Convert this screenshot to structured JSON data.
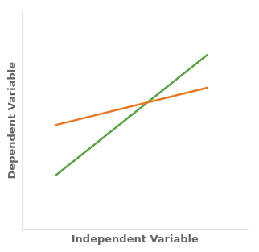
{
  "chart_data": {
    "type": "line",
    "xlabel": "Independent Variable",
    "ylabel": "Dependent Variable",
    "x": [
      0.15,
      0.82
    ],
    "series": [
      {
        "color": "#E87722",
        "values": [
          0.48,
          0.65
        ]
      },
      {
        "color": "#5BA343",
        "values": [
          0.25,
          0.8
        ]
      }
    ],
    "xlim": [
      0,
      1
    ],
    "ylim": [
      0,
      1
    ],
    "grid": false,
    "tick_labels": false,
    "marker": "none"
  }
}
